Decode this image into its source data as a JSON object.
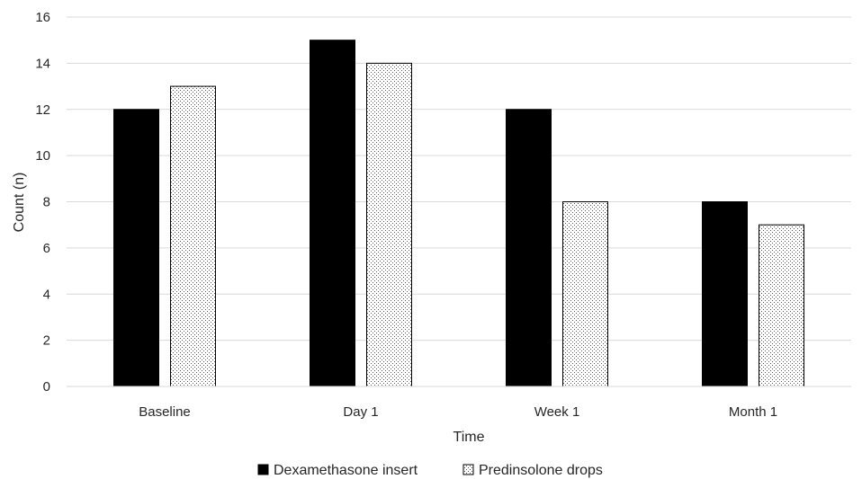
{
  "chart_data": {
    "type": "bar",
    "categories": [
      "Baseline",
      "Day 1",
      "Week 1",
      "Month 1"
    ],
    "series": [
      {
        "name": "Dexamethasone insert",
        "values": [
          12,
          15,
          12,
          8
        ],
        "fill": "#000000"
      },
      {
        "name": "Predinsolone drops",
        "values": [
          13,
          14,
          8,
          7
        ],
        "fill": "dotted"
      }
    ],
    "xlabel": "Time",
    "ylabel": "Count (n)",
    "ylim": [
      0,
      16
    ],
    "yticks": [
      0,
      2,
      4,
      6,
      8,
      10,
      12,
      14,
      16
    ],
    "grid": true,
    "legend": "bottom"
  }
}
